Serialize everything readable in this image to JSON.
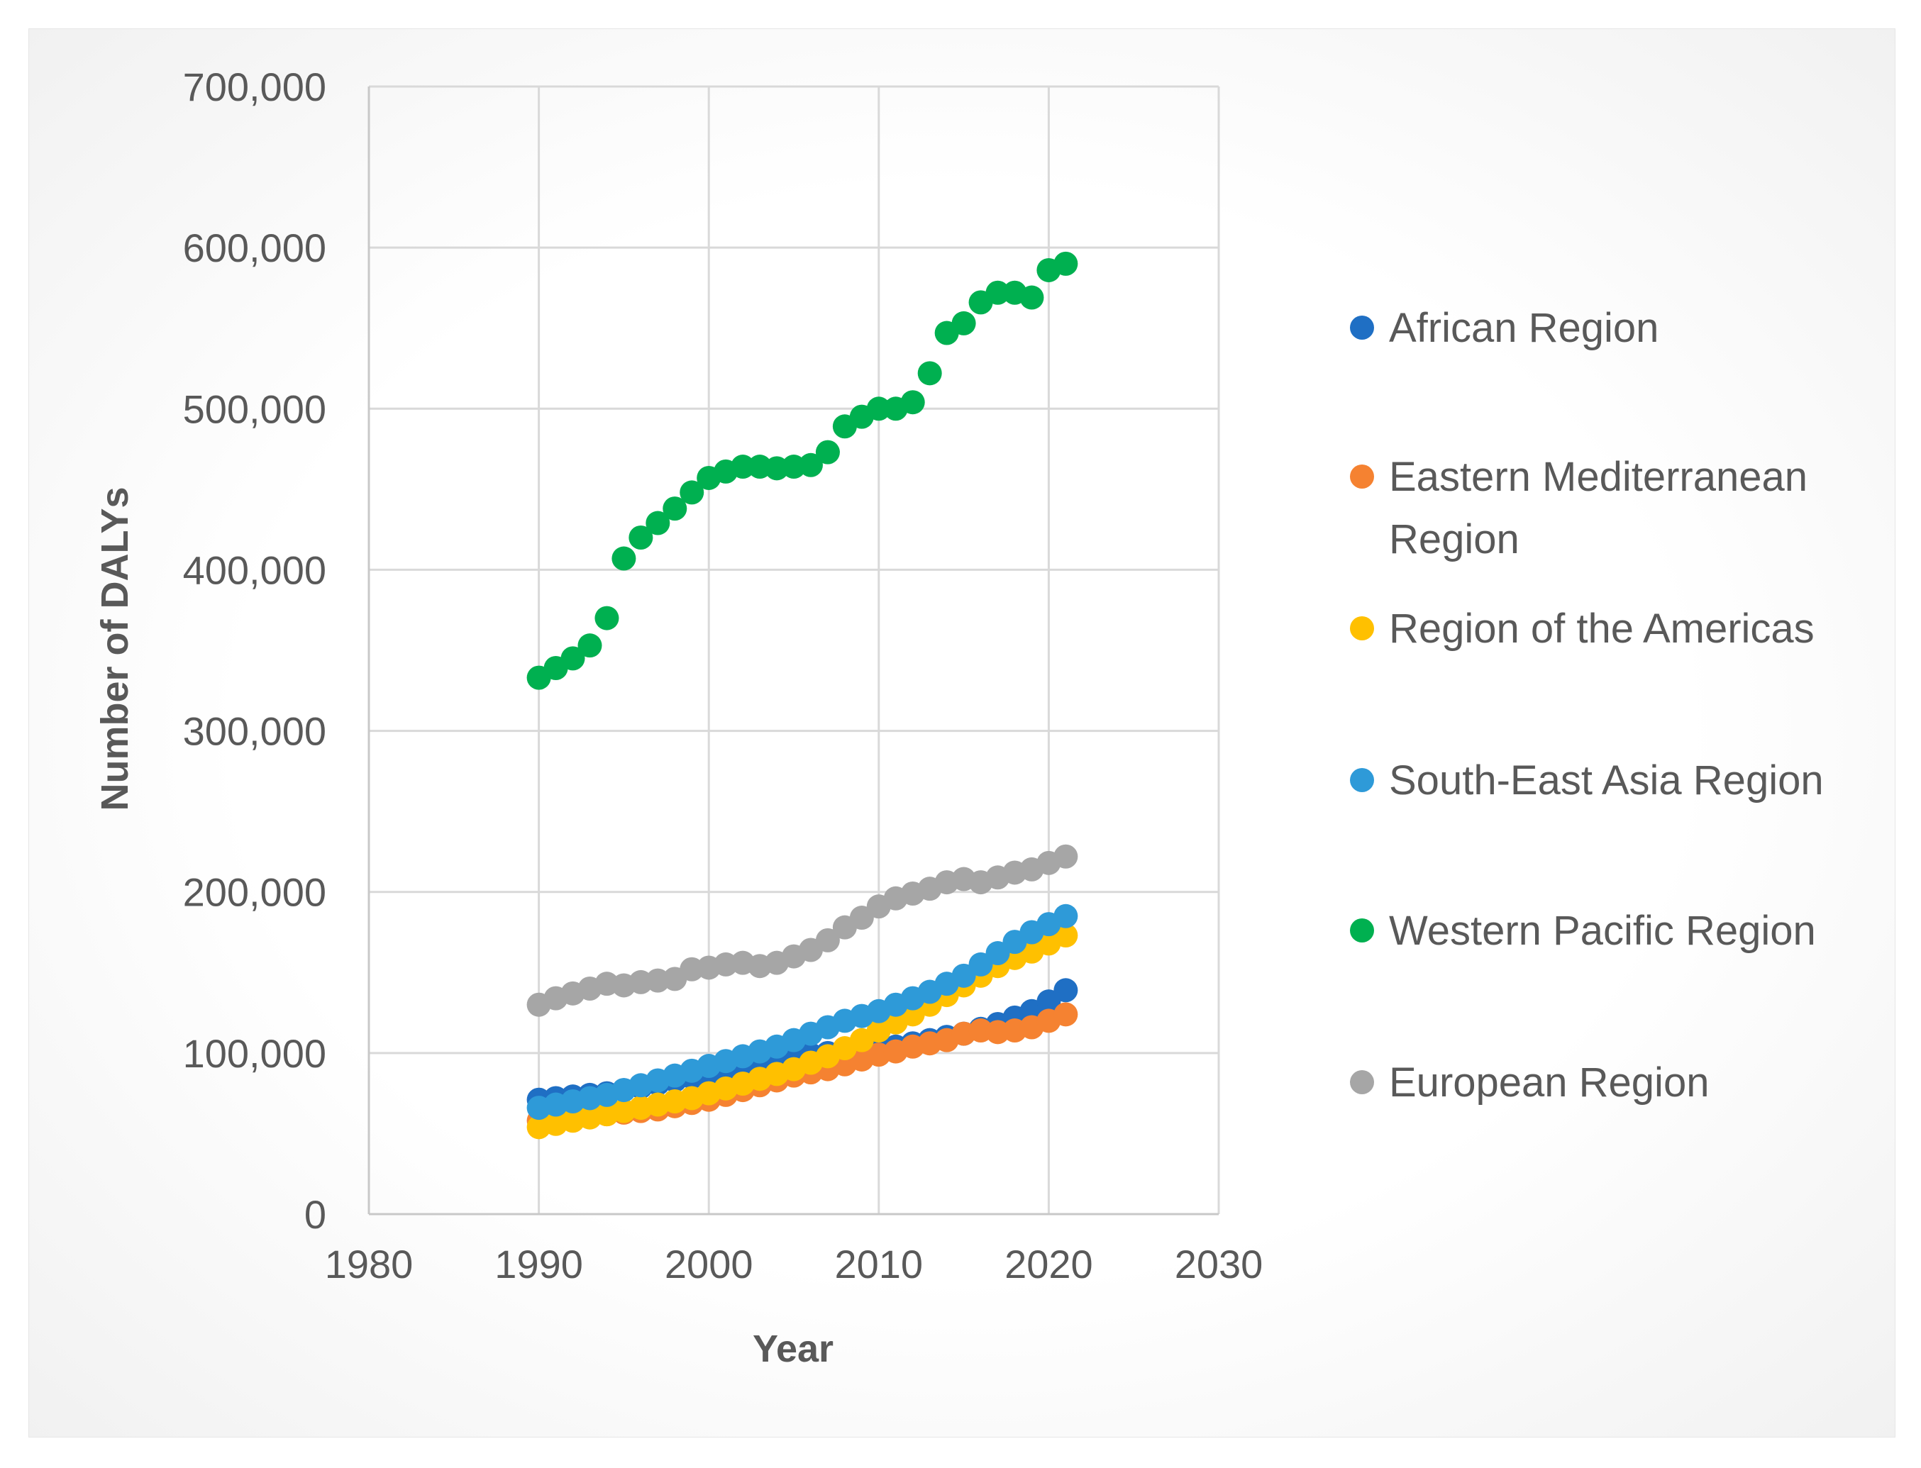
{
  "chart_data": {
    "type": "scatter",
    "title": "",
    "xlabel": "Year",
    "ylabel": "Number of DALYs",
    "xlim": [
      1980,
      2030
    ],
    "ylim": [
      0,
      700000
    ],
    "x_ticks": [
      "1980",
      "1990",
      "2000",
      "2010",
      "2020",
      "2030"
    ],
    "y_ticks": [
      "0",
      "100,000",
      "200,000",
      "300,000",
      "400,000",
      "500,000",
      "600,000",
      "700,000"
    ],
    "x_tick_values": [
      1980,
      1990,
      2000,
      2010,
      2020,
      2030
    ],
    "y_tick_values": [
      0,
      100000,
      200000,
      300000,
      400000,
      500000,
      600000,
      700000
    ],
    "grid": true,
    "legend_position": "right",
    "x": [
      1990,
      1991,
      1992,
      1993,
      1994,
      1995,
      1996,
      1997,
      1998,
      1999,
      2000,
      2001,
      2002,
      2003,
      2004,
      2005,
      2006,
      2007,
      2008,
      2009,
      2010,
      2011,
      2012,
      2013,
      2014,
      2015,
      2016,
      2017,
      2018,
      2019,
      2020,
      2021
    ],
    "series": [
      {
        "name": "African Region",
        "color": "#1f6fc4",
        "values": [
          71000,
          72000,
          73000,
          74000,
          75000,
          77000,
          79000,
          81000,
          83000,
          85000,
          87000,
          89000,
          91000,
          93000,
          95000,
          97000,
          99000,
          100000,
          101000,
          102000,
          103000,
          104000,
          106000,
          108000,
          110000,
          112000,
          115000,
          118000,
          122000,
          126000,
          132000,
          139000
        ]
      },
      {
        "name": "Eastern Mediterranean Region",
        "color": "#f58231",
        "values": [
          58000,
          59000,
          60000,
          61000,
          62000,
          63000,
          64000,
          65000,
          67000,
          69000,
          71000,
          74000,
          77000,
          80000,
          83000,
          86000,
          88000,
          90000,
          93000,
          96000,
          99000,
          101000,
          104000,
          106000,
          108000,
          112000,
          114000,
          113000,
          114000,
          116000,
          120000,
          124000
        ]
      },
      {
        "name": "Region of the Americas",
        "color": "#ffc000",
        "values": [
          54000,
          56000,
          58000,
          60000,
          62000,
          64000,
          66000,
          68000,
          70000,
          72000,
          75000,
          78000,
          81000,
          84000,
          87000,
          90000,
          94000,
          98000,
          103000,
          108000,
          114000,
          119000,
          124000,
          130000,
          136000,
          142000,
          148000,
          154000,
          159000,
          163000,
          168000,
          173000
        ]
      },
      {
        "name": "South-East Asia Region",
        "color": "#2e9ad8",
        "values": [
          66000,
          68000,
          70000,
          72000,
          74000,
          77000,
          80000,
          83000,
          86000,
          89000,
          92000,
          95000,
          98000,
          101000,
          104000,
          108000,
          112000,
          116000,
          120000,
          123000,
          126000,
          130000,
          134000,
          138000,
          143000,
          148000,
          155000,
          162000,
          169000,
          175000,
          180000,
          185000
        ]
      },
      {
        "name": "Western Pacific Region",
        "color": "#00b050",
        "values": [
          333000,
          339000,
          345000,
          353000,
          370000,
          407000,
          420000,
          429000,
          438000,
          448000,
          457000,
          461000,
          464000,
          464000,
          463000,
          464000,
          465000,
          473000,
          489000,
          495000,
          500000,
          500000,
          504000,
          522000,
          547000,
          553000,
          566000,
          572000,
          572000,
          569000,
          586000,
          590000
        ]
      },
      {
        "name": "European Region",
        "color": "#a6a6a6",
        "values": [
          130000,
          134000,
          137000,
          140000,
          143000,
          142000,
          144000,
          145000,
          146000,
          152000,
          153000,
          155000,
          156000,
          154000,
          156000,
          160000,
          164000,
          170000,
          178000,
          184000,
          191000,
          196000,
          199000,
          202000,
          206000,
          208000,
          206000,
          209000,
          212000,
          214000,
          218000,
          222000
        ]
      }
    ]
  }
}
